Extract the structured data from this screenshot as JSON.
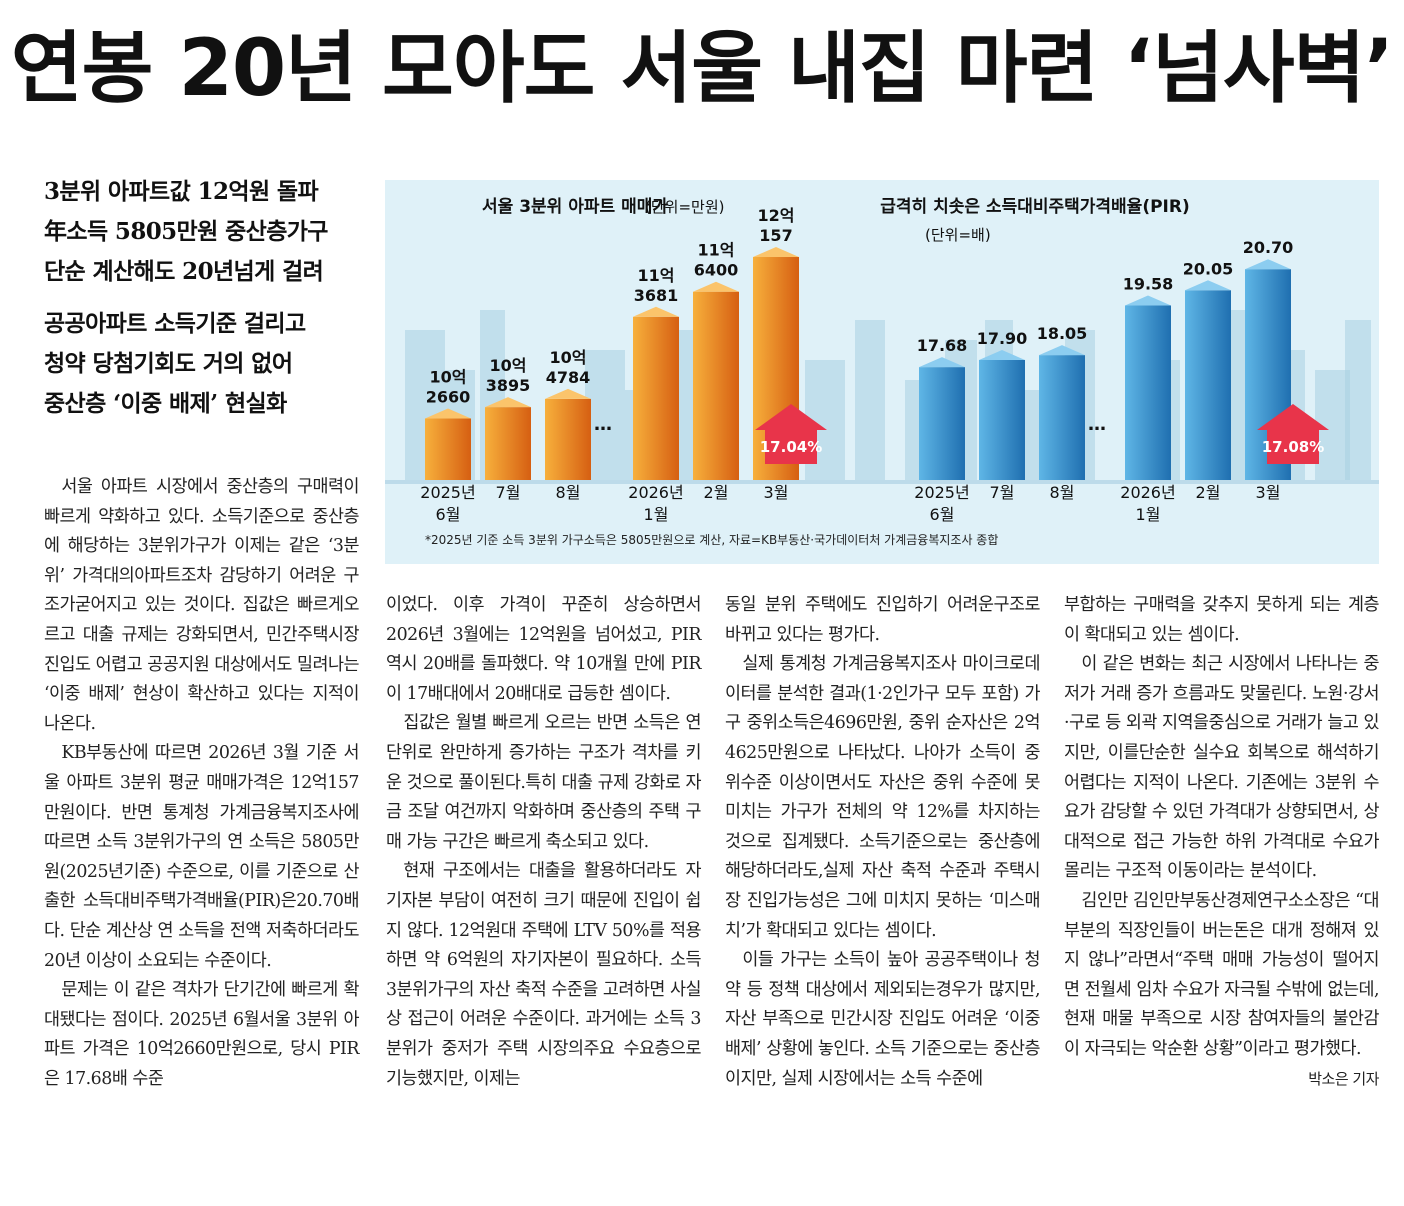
{
  "headline": "연봉 20년 모아도 서울 내집 마련 ‘넘사벽’",
  "decks": [
    [
      "3분위 아파트값 12억원 돌파",
      "年소득 5805만원 중산층가구",
      "단순 계산해도 20년넘게 걸려"
    ],
    [
      "공공아파트 소득기준 걸리고",
      "청약 당첨기회도 거의 없어",
      "중산층 ‘이중 배제’ 현실화"
    ]
  ],
  "colors": {
    "orange": "#f08a1c",
    "orange_dark": "#d65f12",
    "blue": "#3b97d3",
    "blue_dark": "#1f6fb0",
    "arrow": "#e8344a",
    "panel": "#dff1f8",
    "skyline": "#a8cfe2"
  },
  "chart_data": [
    {
      "type": "bar",
      "title": "서울 3분위 아파트 매매가",
      "unit": "(단위=만원)",
      "categories": [
        "2025년 6월",
        "7월",
        "8월",
        "2026년 1월",
        "2월",
        "3월"
      ],
      "category_labels": [
        [
          "2025년",
          "6월"
        ],
        [
          "7월"
        ],
        [
          "8월"
        ],
        [
          "2026년",
          "1월"
        ],
        [
          "2월"
        ],
        [
          "3월"
        ]
      ],
      "values": [
        102660,
        103895,
        104784,
        113681,
        116400,
        120157
      ],
      "data_labels": [
        [
          "10억",
          "2660"
        ],
        [
          "10억",
          "3895"
        ],
        [
          "10억",
          "4784"
        ],
        [
          "11억",
          "3681"
        ],
        [
          "11억",
          "6400"
        ],
        [
          "12억",
          "157"
        ]
      ],
      "change_label": "17.04%"
    },
    {
      "type": "bar",
      "title": "급격히 치솟은 소득대비주택가격배율(PIR)",
      "unit": "(단위=배)",
      "categories": [
        "2025년 6월",
        "7월",
        "8월",
        "2026년 1월",
        "2월",
        "3월"
      ],
      "category_labels": [
        [
          "2025년",
          "6월"
        ],
        [
          "7월"
        ],
        [
          "8월"
        ],
        [
          "2026년",
          "1월"
        ],
        [
          "2월"
        ],
        [
          "3월"
        ]
      ],
      "values": [
        17.68,
        17.9,
        18.05,
        19.58,
        20.05,
        20.7
      ],
      "data_labels": [
        [
          "17.68"
        ],
        [
          "17.90"
        ],
        [
          "18.05"
        ],
        [
          "19.58"
        ],
        [
          "20.05"
        ],
        [
          "20.70"
        ]
      ],
      "change_label": "17.08%"
    }
  ],
  "chart_note": "*2025년 기준 소득 3분위 가구소득은 5805만원으로 계산, 자료=KB부동산·국가데이터처 가계금융복지조사 종합",
  "columns": [
    {
      "paragraphs": [
        {
          "cont": false,
          "lines": [
            "서울 아파트 시장에서 중산층의 구",
            "매력이 빠르게 약화하고 있다. 소득",
            "기준으로 중산층에 해당하는 3분위",
            "가구가 이제는 같은 ‘3분위’ 가격대의",
            "아파트조차 감당하기 어려운 구조가",
            "굳어지고 있는 것이다. 집값은 빠르게",
            "오르고 대출 규제는 강화되면서, 민간",
            "주택시장 진입도 어렵고 공공지원 대",
            "상에서도 밀려나는 ‘이중 배제’ 현상",
            "이 확산하고 있다는 지적이 나온다."
          ]
        },
        {
          "cont": false,
          "lines": [
            "KB부동산에 따르면 2026년 3월 기",
            "준 서울 아파트 3분위 평균 매매가격",
            "은 12억157만원이다. 반면 통계청 가",
            "계금융복지조사에 따르면 소득 3분위",
            "가구의 연 소득은 5805만원(2025년",
            "기준) 수준으로, 이를 기준으로 산출",
            "한  소득대비주택가격배율(PIR)은",
            "20.70배다. 단순 계산상 연 소득을 전",
            "액 저축하더라도 20년 이상이 소요되",
            "는 수준이다."
          ]
        },
        {
          "cont": false,
          "lines": [
            "문제는 이 같은 격차가 단기간에 빠",
            "르게 확대됐다는 점이다. 2025년 6월",
            "서울 3분위 아파트 가격은 10억2660",
            "만원으로, 당시 PIR은 17.68배 수준"
          ]
        }
      ]
    },
    {
      "paragraphs": [
        {
          "cont": true,
          "lines": [
            "이었다. 이후 가격이 꾸준히 상승하면",
            "서 2026년 3월에는 12억원을 넘어섰",
            "고, PIR 역시 20배를 돌파했다. 약 10",
            "개월 만에 PIR이 17배대에서 20배대",
            "로 급등한 셈이다."
          ]
        },
        {
          "cont": false,
          "lines": [
            "집값은 월별 빠르게 오르는 반면 소",
            "득은 연 단위로 완만하게 증가하는 구",
            "조가 격차를 키운 것으로 풀이된다.",
            "특히 대출 규제 강화로 자금 조달 여건",
            "까지 악화하며 중산층의 주택 구매 가",
            "능 구간은 빠르게 축소되고 있다."
          ]
        },
        {
          "cont": false,
          "lines": [
            "현재 구조에서는 대출을 활용하더",
            "라도 자기자본 부담이 여전히 크기 때",
            "문에 진입이 쉽지 않다. 12억원대 주",
            "택에 LTV 50%를 적용하면 약 6억원",
            "의 자기자본이 필요하다. 소득 3분위",
            "가구의 자산 축적 수준을 고려하면 사",
            "실상 접근이 어려운 수준이다. 과거에",
            "는 소득 3분위가 중저가 주택 시장의",
            "주요 수요층으로 기능했지만, 이제는"
          ]
        }
      ]
    },
    {
      "paragraphs": [
        {
          "cont": true,
          "lines": [
            "동일 분위 주택에도 진입하기 어려운",
            "구조로 바뀌고 있다는 평가다."
          ]
        },
        {
          "cont": false,
          "lines": [
            "실제 통계청 가계금융복지조사 마",
            "이크로데이터를 분석한 결과(1·2인",
            "가구 모두 포함) 가구 중위소득은",
            "4696만원, 중위 순자산은 2억4625만",
            "원으로 나타났다. 나아가 소득이 중위",
            "수준 이상이면서도 자산은 중위 수준",
            "에 못 미치는 가구가 전체의 약 12%",
            "를 차지하는 것으로 집계됐다. 소득",
            "기준으로는 중산층에 해당하더라도,",
            "실제 자산 축적 수준과 주택시장 진입",
            "가능성은 그에 미치지 못하는 ‘미스매",
            "치’가 확대되고 있다는 셈이다."
          ]
        },
        {
          "cont": false,
          "lines": [
            "이들 가구는 소득이 높아 공공주택",
            "이나 청약 등 정책 대상에서 제외되는",
            "경우가 많지만, 자산 부족으로 민간",
            "시장 진입도 어려운 ‘이중 배제’ 상황",
            "에 놓인다. 소득 기준으로는 중산층이",
            "지만, 실제 시장에서는 소득 수준에"
          ]
        }
      ]
    },
    {
      "paragraphs": [
        {
          "cont": true,
          "lines": [
            "부합하는 구매력을 갖추지 못하게 되",
            "는 계층이 확대되고 있는 셈이다."
          ]
        },
        {
          "cont": false,
          "lines": [
            "이 같은 변화는 최근 시장에서 나타",
            "나는 중저가 거래 증가 흐름과도 맞물",
            "린다. 노원·강서·구로 등 외곽 지역을",
            "중심으로 거래가 늘고 있지만, 이를",
            "단순한 실수요 회복으로 해석하기 어",
            "렵다는 지적이 나온다. 기존에는 3분",
            "위 수요가 감당할 수 있던 가격대가 상",
            "향되면서, 상대적으로 접근 가능한 하",
            "위 가격대로 수요가 몰리는 구조적 이",
            "동이라는 분석이다."
          ]
        },
        {
          "cont": false,
          "lines": [
            "김인만 김인만부동산경제연구소",
            "소장은 “대부분의 직장인들이 버는",
            "돈은 대개 정해져 있지 않나”라면서",
            "“주택 매매 가능성이 떨어지면 전월",
            "세 임차 수요가 자극될 수밖에 없는",
            "데, 현재 매물 부족으로 시장 참여자",
            "들의 불안감이 자극되는 악순환 상",
            "황”이라고 평가했다."
          ]
        }
      ],
      "byline": "박소은 기자"
    }
  ]
}
